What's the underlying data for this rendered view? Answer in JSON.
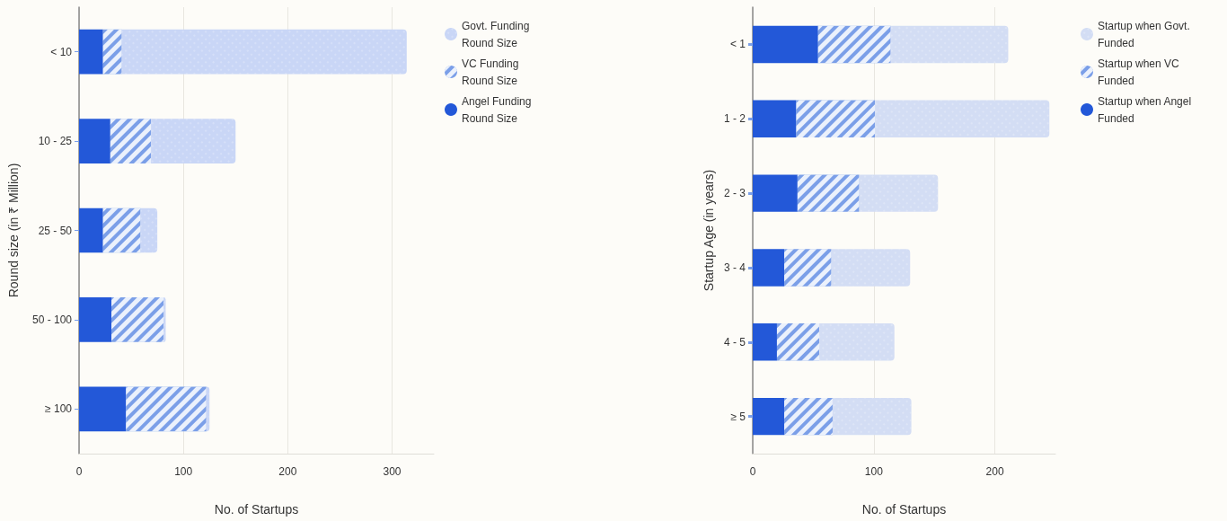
{
  "chart_data": [
    {
      "type": "bar",
      "orientation": "horizontal",
      "stacked": true,
      "xlabel": "No. of Startups",
      "ylabel": "Round size (in ₹ Million)",
      "categories": [
        "< 10",
        "10 - 25",
        "25 - 50",
        "50 - 100",
        "≥ 100"
      ],
      "series": [
        {
          "name": "Angel Funding Round Size",
          "color": "#2358d8",
          "values": [
            23,
            30,
            23,
            31,
            45
          ]
        },
        {
          "name": "VC Funding Round Size",
          "color": "#7b9fe8",
          "values": [
            18,
            39,
            36,
            50,
            77
          ]
        },
        {
          "name": "Govt. Funding Round Size",
          "color": "#c9d6f6",
          "values": [
            273,
            81,
            16,
            2,
            3
          ]
        }
      ],
      "xlim": [
        0,
        340
      ],
      "xticks": [
        0,
        100,
        200,
        300
      ],
      "grid": "x",
      "legend": "top right"
    },
    {
      "type": "bar",
      "orientation": "horizontal",
      "stacked": true,
      "xlabel": "No. of Startups",
      "ylabel": "Startup Age (in years)",
      "categories": [
        "< 1",
        "1 - 2",
        "2 - 3",
        "3 - 4",
        "4 - 5",
        "≥ 5"
      ],
      "series": [
        {
          "name": "Startup when Angel Funded",
          "color": "#2358d8",
          "values": [
            54,
            36,
            37,
            26,
            20,
            26
          ]
        },
        {
          "name": "Startup when VC Funded",
          "color": "#7b9fe8",
          "values": [
            60,
            65,
            51,
            39,
            35,
            40
          ]
        },
        {
          "name": "Startup when Govt. Funded",
          "color": "#d3ddf4",
          "values": [
            97,
            144,
            65,
            65,
            62,
            65
          ]
        }
      ],
      "xlim": [
        0,
        250
      ],
      "xticks": [
        0,
        100,
        200
      ],
      "grid": "x",
      "legend": "top right"
    }
  ]
}
